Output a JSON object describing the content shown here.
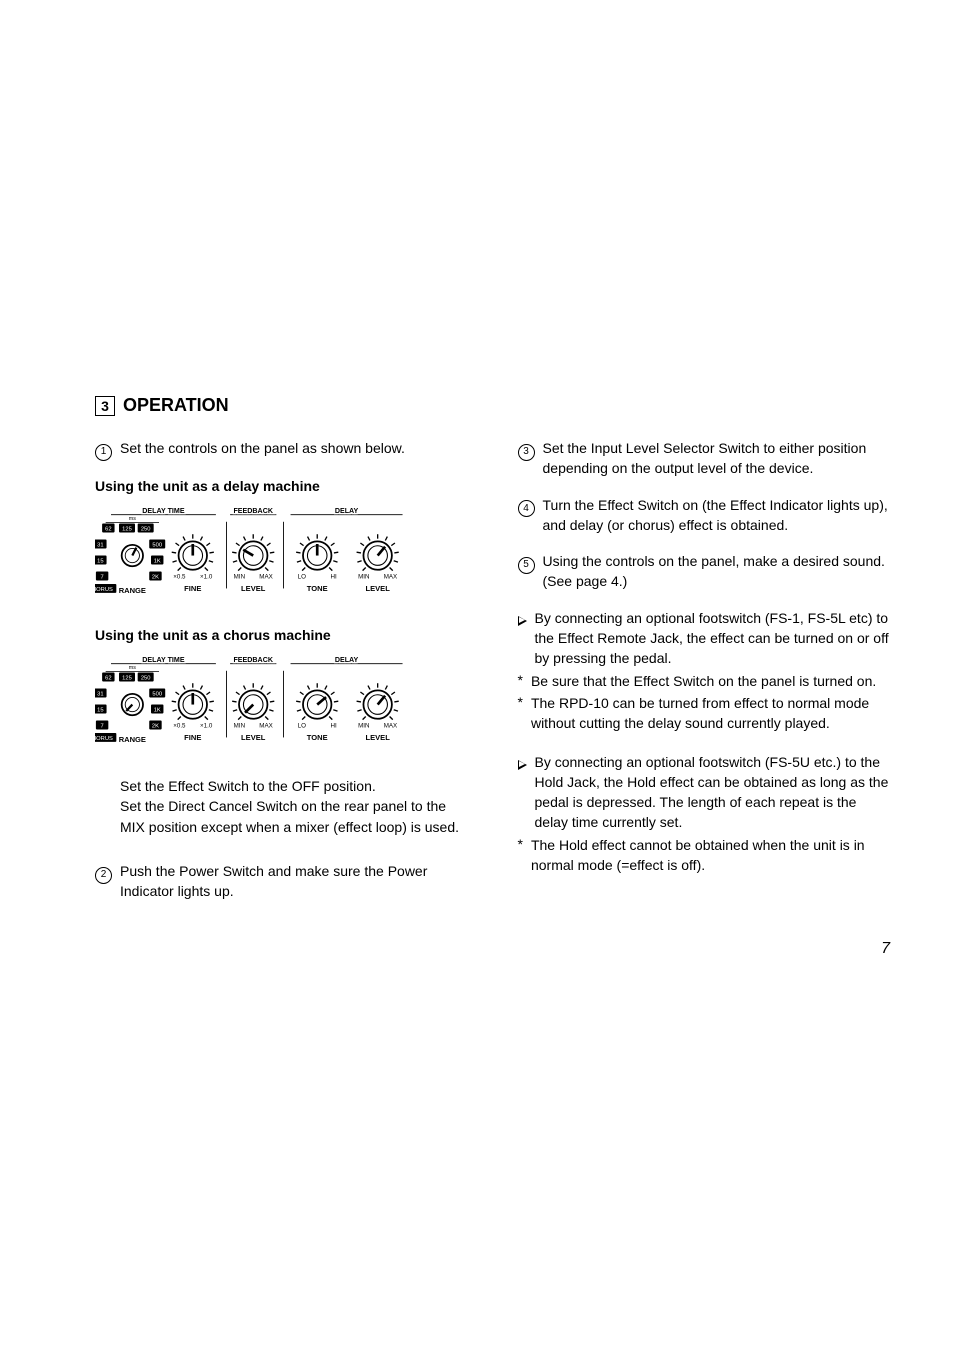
{
  "section": {
    "num": "3",
    "title": "OPERATION"
  },
  "page_number": "7",
  "left": {
    "step1": "Set the controls on the panel as shown below.",
    "delay_heading": "Using the unit as a delay machine",
    "chorus_heading": "Using the unit as a chorus machine",
    "body_after_chorus_1": "Set the Effect Switch to the OFF position.",
    "body_after_chorus_2": "Set the Direct Cancel Switch on the rear panel to the MIX position except when a mixer (effect loop) is used.",
    "step2": "Push the Power Switch and make sure the Power Indicator lights up."
  },
  "right": {
    "step3": "Set the Input Level Selector Switch to either position depending on the output level of the device.",
    "step4": "Turn the Effect Switch on (the Effect Indicator lights up), and delay (or chorus) effect is obtained.",
    "step5": "Using the controls on the panel, make a desired sound. (See page 4.)",
    "note_a": "By connecting an optional footswitch (FS-1, FS-5L etc) to the Effect Remote Jack, the effect can be turned on or off by pressing the pedal.",
    "note_b": "Be sure that the Effect Switch on the panel is turned on.",
    "note_c": "The RPD-10 can be turned from effect to normal mode without cutting the delay sound currently played.",
    "note_d": "By connecting an optional footswitch (FS-5U etc.) to the Hold Jack, the Hold effect can be obtained as long as the pedal is depressed. The length of each repeat is the delay time currently set.",
    "note_e": "The Hold effect cannot be obtained when the unit is in normal mode (=effect is off)."
  },
  "panel_labels": {
    "groups": [
      "DELAY TIME",
      "FEEDBACK",
      "DELAY"
    ],
    "knobs": [
      "RANGE",
      "FINE",
      "LEVEL",
      "TONE",
      "LEVEL"
    ],
    "fine": {
      "left": "×0.5",
      "right": "×1.0"
    },
    "feedback": {
      "left": "MIN",
      "right": "MAX"
    },
    "tone": {
      "left": "LO",
      "right": "HI"
    },
    "level": {
      "left": "MIN",
      "right": "MAX"
    },
    "range_values": [
      "62",
      "125",
      "250",
      "31",
      "500",
      "15",
      "1K",
      "7",
      "2K",
      "CHORUS"
    ],
    "ms_label": "ms"
  },
  "delay_panel": {
    "range_sel": 2,
    "fine_angle": 0,
    "feedback_angle": -60,
    "tone_angle": 0,
    "level_angle": 40
  },
  "chorus_panel": {
    "range_sel": 9,
    "fine_angle": 0,
    "feedback_angle": -135,
    "tone_angle": 50,
    "level_angle": 40
  },
  "style": {
    "text_color": "#000000",
    "bg": "#ffffff",
    "font": "Arial"
  }
}
